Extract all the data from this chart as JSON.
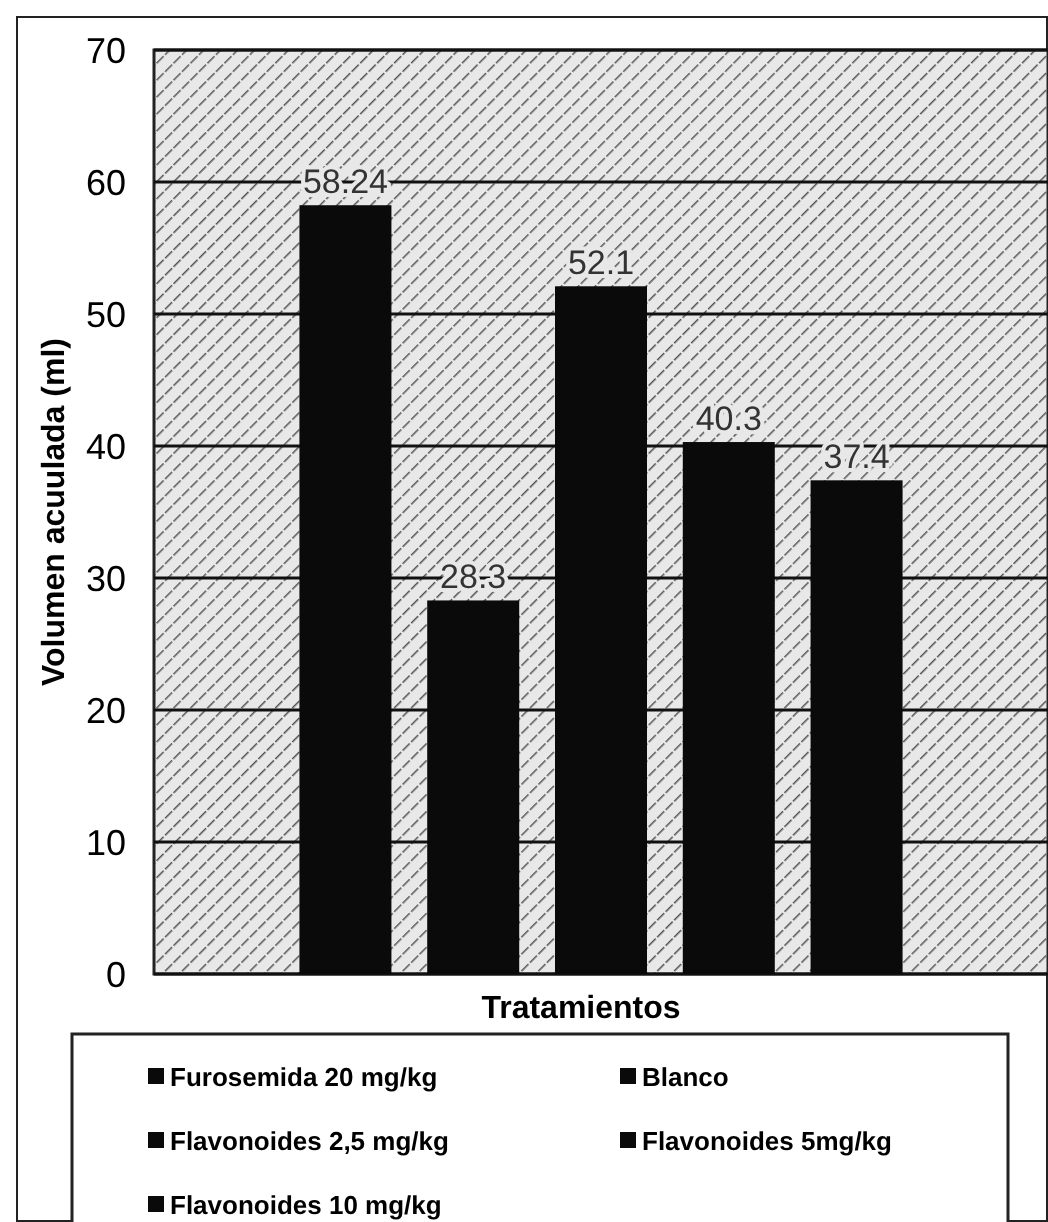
{
  "chart_data": {
    "type": "bar",
    "xlabel": "Tratamientos",
    "ylabel": "Volumen acuulada (ml)",
    "categories": [
      null
    ],
    "series": [
      {
        "name": "Furosemida 20 mg/kg",
        "color": "#0a0a0a",
        "values": [
          58.24
        ]
      },
      {
        "name": "Blanco",
        "color": "#0a0a0a",
        "values": [
          28.3
        ]
      },
      {
        "name": "Flavonoides 2,5 mg/kg",
        "color": "#0a0a0a",
        "values": [
          52.1
        ]
      },
      {
        "name": "Flavonoides 5mg/kg",
        "color": "#0a0a0a",
        "values": [
          40.3
        ]
      },
      {
        "name": "Flavonoides 10 mg/kg",
        "color": "#0a0a0a",
        "values": [
          37.4
        ]
      }
    ],
    "ylim": [
      0,
      70
    ],
    "yticks": [
      0,
      10,
      20,
      30,
      40,
      50,
      60,
      70
    ],
    "grid": "y",
    "legend": "bottom",
    "data_labels": true
  }
}
